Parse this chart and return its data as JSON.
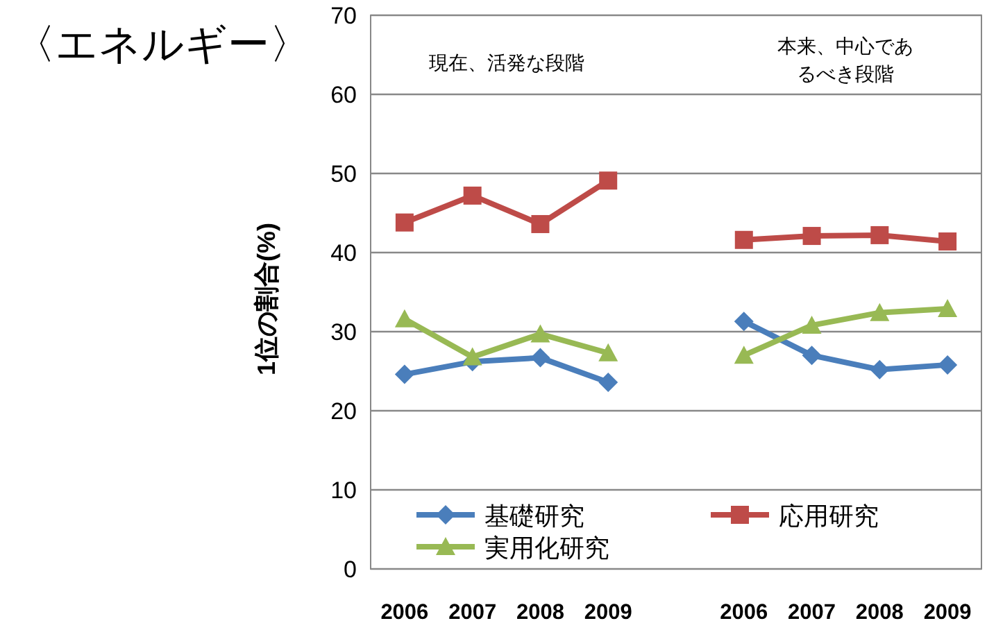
{
  "chart_data": {
    "type": "line",
    "title": "〈エネルギー〉",
    "ylabel": "1位の割合(%)",
    "categories": [
      "2006",
      "2007",
      "2008",
      "2009",
      null,
      "2006",
      "2007",
      "2008",
      "2009"
    ],
    "series": [
      {
        "name": "基礎研究",
        "color": "#4a7ebb",
        "marker": "diamond",
        "values": [
          24.6,
          26.2,
          26.7,
          23.6,
          null,
          31.3,
          27.0,
          25.2,
          25.8
        ]
      },
      {
        "name": "応用研究",
        "color": "#be4b48",
        "marker": "square",
        "values": [
          43.8,
          47.2,
          43.6,
          49.1,
          null,
          41.6,
          42.1,
          42.2,
          41.4
        ]
      },
      {
        "name": "実用化研究",
        "color": "#98b954",
        "marker": "triangle",
        "values": [
          31.6,
          26.8,
          29.7,
          27.3,
          null,
          27.0,
          30.8,
          32.4,
          32.9
        ]
      }
    ],
    "ylim": [
      0,
      70
    ],
    "yticks": [
      0,
      10,
      20,
      30,
      40,
      50,
      60,
      70
    ],
    "grid": "y",
    "legend": "bottom",
    "annotations": [
      "現在、活発な段階",
      "本来、中心であるべき段階"
    ]
  }
}
